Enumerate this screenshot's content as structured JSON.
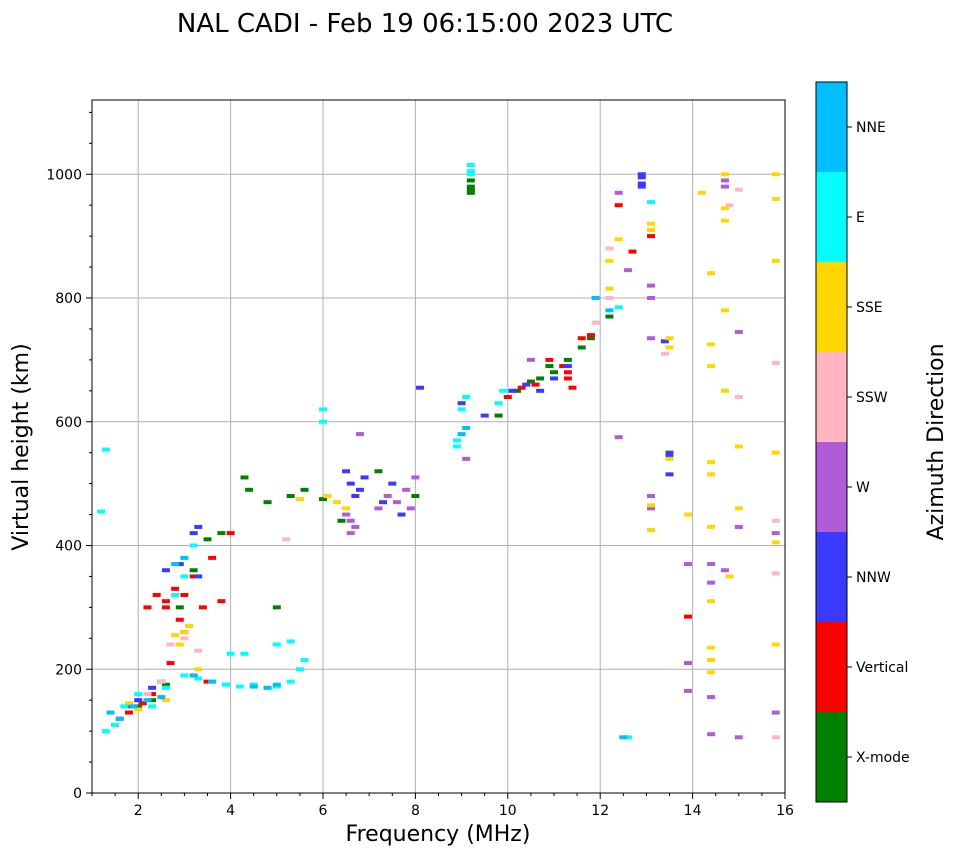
{
  "chart_data": {
    "type": "scatter",
    "title": "NAL CADI - Feb 19 06:15:00 2023 UTC",
    "xlabel": "Frequency (MHz)",
    "ylabel": "Virtual height (km)",
    "xlim": [
      1,
      16
    ],
    "ylim": [
      0,
      1120
    ],
    "x_ticks": [
      2,
      4,
      6,
      8,
      10,
      12,
      14,
      16
    ],
    "y_ticks": [
      0,
      200,
      400,
      600,
      800,
      1000
    ],
    "grid": true,
    "colorbar": {
      "label": "Azimuth Direction",
      "categories": [
        "X-mode",
        "Vertical",
        "NNW",
        "W",
        "SSW",
        "SSE",
        "E",
        "NNE"
      ],
      "colors": [
        "#008000",
        "#ff0000",
        "#3a3aff",
        "#b05cd6",
        "#ffb6c1",
        "#ffd700",
        "#00ffff",
        "#00bfff"
      ]
    },
    "series": [
      {
        "name": "X-mode",
        "points": [
          [
            2.0,
            140
          ],
          [
            2.3,
            150
          ],
          [
            2.6,
            175
          ],
          [
            2.9,
            300
          ],
          [
            3.2,
            360
          ],
          [
            3.5,
            410
          ],
          [
            3.8,
            420
          ],
          [
            4.3,
            510
          ],
          [
            4.4,
            490
          ],
          [
            4.8,
            470
          ],
          [
            5.0,
            300
          ],
          [
            5.3,
            480
          ],
          [
            5.6,
            490
          ],
          [
            6.0,
            475
          ],
          [
            6.4,
            440
          ],
          [
            7.2,
            520
          ],
          [
            8.0,
            480
          ],
          [
            9.2,
            990
          ],
          [
            9.2,
            980
          ],
          [
            9.2,
            975
          ],
          [
            9.2,
            970
          ],
          [
            9.8,
            610
          ],
          [
            10.2,
            650
          ],
          [
            10.5,
            665
          ],
          [
            10.7,
            670
          ],
          [
            10.9,
            690
          ],
          [
            11.0,
            680
          ],
          [
            11.3,
            700
          ],
          [
            11.6,
            720
          ],
          [
            11.8,
            735
          ],
          [
            12.2,
            770
          ]
        ]
      },
      {
        "name": "Vertical",
        "points": [
          [
            1.6,
            120
          ],
          [
            1.8,
            130
          ],
          [
            2.1,
            145
          ],
          [
            2.3,
            160
          ],
          [
            2.5,
            180
          ],
          [
            2.7,
            210
          ],
          [
            2.2,
            300
          ],
          [
            2.4,
            320
          ],
          [
            2.6,
            310
          ],
          [
            2.8,
            330
          ],
          [
            3.0,
            320
          ],
          [
            3.2,
            350
          ],
          [
            2.6,
            300
          ],
          [
            2.9,
            280
          ],
          [
            3.1,
            270
          ],
          [
            3.4,
            300
          ],
          [
            3.6,
            380
          ],
          [
            3.8,
            310
          ],
          [
            4.0,
            420
          ],
          [
            3.2,
            190
          ],
          [
            3.5,
            180
          ],
          [
            10.0,
            640
          ],
          [
            10.3,
            655
          ],
          [
            10.6,
            660
          ],
          [
            10.9,
            700
          ],
          [
            11.2,
            690
          ],
          [
            11.3,
            680
          ],
          [
            11.3,
            670
          ],
          [
            11.4,
            655
          ],
          [
            11.6,
            735
          ],
          [
            11.8,
            740
          ],
          [
            12.4,
            950
          ],
          [
            12.7,
            875
          ],
          [
            13.1,
            900
          ],
          [
            13.9,
            285
          ]
        ]
      },
      {
        "name": "NNW",
        "points": [
          [
            1.5,
            110
          ],
          [
            1.8,
            140
          ],
          [
            2.0,
            150
          ],
          [
            2.3,
            170
          ],
          [
            2.6,
            360
          ],
          [
            2.9,
            370
          ],
          [
            3.2,
            420
          ],
          [
            3.3,
            430
          ],
          [
            3.0,
            260
          ],
          [
            3.3,
            350
          ],
          [
            6.5,
            520
          ],
          [
            6.6,
            500
          ],
          [
            6.8,
            490
          ],
          [
            6.7,
            480
          ],
          [
            6.9,
            510
          ],
          [
            7.3,
            470
          ],
          [
            7.5,
            500
          ],
          [
            7.7,
            450
          ],
          [
            8.1,
            655
          ],
          [
            9.0,
            630
          ],
          [
            9.5,
            610
          ],
          [
            10.1,
            650
          ],
          [
            10.4,
            660
          ],
          [
            10.7,
            650
          ],
          [
            11.0,
            670
          ],
          [
            11.3,
            690
          ],
          [
            12.9,
            1000
          ],
          [
            12.9,
            995
          ],
          [
            12.9,
            985
          ],
          [
            12.9,
            980
          ],
          [
            13.5,
            550
          ],
          [
            13.5,
            545
          ],
          [
            13.5,
            515
          ],
          [
            13.4,
            730
          ]
        ]
      },
      {
        "name": "W",
        "points": [
          [
            6.5,
            450
          ],
          [
            6.6,
            440
          ],
          [
            6.7,
            430
          ],
          [
            6.6,
            420
          ],
          [
            7.2,
            460
          ],
          [
            7.4,
            480
          ],
          [
            7.6,
            470
          ],
          [
            7.8,
            490
          ],
          [
            7.9,
            460
          ],
          [
            8.0,
            510
          ],
          [
            6.8,
            580
          ],
          [
            9.1,
            540
          ],
          [
            10.5,
            700
          ],
          [
            12.4,
            970
          ],
          [
            12.6,
            845
          ],
          [
            13.1,
            820
          ],
          [
            13.1,
            800
          ],
          [
            13.1,
            480
          ],
          [
            13.1,
            460
          ],
          [
            12.4,
            575
          ],
          [
            13.9,
            370
          ],
          [
            13.9,
            210
          ],
          [
            13.9,
            165
          ],
          [
            14.4,
            370
          ],
          [
            14.4,
            340
          ],
          [
            14.4,
            155
          ],
          [
            14.4,
            95
          ],
          [
            14.7,
            360
          ],
          [
            14.7,
            980
          ],
          [
            14.7,
            990
          ],
          [
            15.0,
            430
          ],
          [
            15.0,
            745
          ],
          [
            15.0,
            90
          ],
          [
            15.8,
            130
          ],
          [
            15.8,
            420
          ],
          [
            13.1,
            735
          ]
        ]
      },
      {
        "name": "SSW",
        "points": [
          [
            2.2,
            160
          ],
          [
            2.5,
            180
          ],
          [
            2.7,
            240
          ],
          [
            3.0,
            250
          ],
          [
            3.3,
            230
          ],
          [
            5.2,
            410
          ],
          [
            11.9,
            760
          ],
          [
            12.2,
            880
          ],
          [
            12.2,
            800
          ],
          [
            13.4,
            710
          ],
          [
            14.8,
            950
          ],
          [
            15.0,
            975
          ],
          [
            15.0,
            640
          ],
          [
            15.8,
            695
          ],
          [
            15.8,
            440
          ],
          [
            15.8,
            355
          ],
          [
            15.8,
            90
          ]
        ]
      },
      {
        "name": "SSE",
        "points": [
          [
            1.8,
            145
          ],
          [
            2.0,
            135
          ],
          [
            2.3,
            140
          ],
          [
            2.6,
            150
          ],
          [
            2.8,
            255
          ],
          [
            3.0,
            260
          ],
          [
            3.1,
            270
          ],
          [
            2.9,
            240
          ],
          [
            3.3,
            200
          ],
          [
            5.5,
            475
          ],
          [
            6.1,
            480
          ],
          [
            6.3,
            470
          ],
          [
            6.5,
            460
          ],
          [
            12.2,
            860
          ],
          [
            12.2,
            815
          ],
          [
            12.4,
            895
          ],
          [
            13.1,
            920
          ],
          [
            13.1,
            910
          ],
          [
            13.1,
            465
          ],
          [
            13.1,
            425
          ],
          [
            13.5,
            735
          ],
          [
            13.5,
            720
          ],
          [
            13.5,
            540
          ],
          [
            13.9,
            450
          ],
          [
            14.2,
            970
          ],
          [
            14.4,
            840
          ],
          [
            14.4,
            725
          ],
          [
            14.4,
            690
          ],
          [
            14.4,
            535
          ],
          [
            14.4,
            515
          ],
          [
            14.4,
            430
          ],
          [
            14.4,
            310
          ],
          [
            14.4,
            235
          ],
          [
            14.4,
            215
          ],
          [
            14.4,
            195
          ],
          [
            14.7,
            1000
          ],
          [
            14.7,
            945
          ],
          [
            14.7,
            925
          ],
          [
            14.7,
            780
          ],
          [
            14.7,
            650
          ],
          [
            14.8,
            350
          ],
          [
            15.0,
            560
          ],
          [
            15.0,
            460
          ],
          [
            15.8,
            1000
          ],
          [
            15.8,
            960
          ],
          [
            15.8,
            860
          ],
          [
            15.8,
            550
          ],
          [
            15.8,
            405
          ],
          [
            15.8,
            240
          ]
        ]
      },
      {
        "name": "E",
        "points": [
          [
            1.3,
            100
          ],
          [
            1.5,
            110
          ],
          [
            1.7,
            140
          ],
          [
            2.0,
            160
          ],
          [
            2.3,
            140
          ],
          [
            2.6,
            170
          ],
          [
            3.0,
            190
          ],
          [
            3.3,
            185
          ],
          [
            3.6,
            180
          ],
          [
            3.9,
            175
          ],
          [
            4.2,
            172
          ],
          [
            4.5,
            175
          ],
          [
            4.8,
            170
          ],
          [
            5.0,
            172
          ],
          [
            5.3,
            180
          ],
          [
            5.5,
            200
          ],
          [
            5.6,
            215
          ],
          [
            4.0,
            225
          ],
          [
            4.3,
            225
          ],
          [
            5.0,
            240
          ],
          [
            5.3,
            245
          ],
          [
            2.8,
            320
          ],
          [
            3.0,
            350
          ],
          [
            3.2,
            400
          ],
          [
            6.0,
            600
          ],
          [
            6.0,
            620
          ],
          [
            8.9,
            570
          ],
          [
            8.9,
            560
          ],
          [
            9.0,
            620
          ],
          [
            9.1,
            640
          ],
          [
            9.2,
            1015
          ],
          [
            9.2,
            1005
          ],
          [
            9.2,
            1000
          ],
          [
            9.8,
            630
          ],
          [
            9.9,
            650
          ],
          [
            12.4,
            785
          ],
          [
            12.6,
            90
          ],
          [
            13.1,
            955
          ],
          [
            1.3,
            555
          ],
          [
            1.2,
            455
          ]
        ]
      },
      {
        "name": "NNE",
        "points": [
          [
            1.4,
            130
          ],
          [
            1.6,
            120
          ],
          [
            1.9,
            140
          ],
          [
            2.2,
            150
          ],
          [
            2.5,
            155
          ],
          [
            2.8,
            370
          ],
          [
            3.0,
            380
          ],
          [
            3.2,
            190
          ],
          [
            3.6,
            180
          ],
          [
            4.5,
            172
          ],
          [
            4.8,
            170
          ],
          [
            5.0,
            175
          ],
          [
            9.0,
            580
          ],
          [
            9.1,
            590
          ],
          [
            11.9,
            800
          ],
          [
            12.2,
            780
          ],
          [
            12.5,
            90
          ]
        ]
      }
    ]
  }
}
